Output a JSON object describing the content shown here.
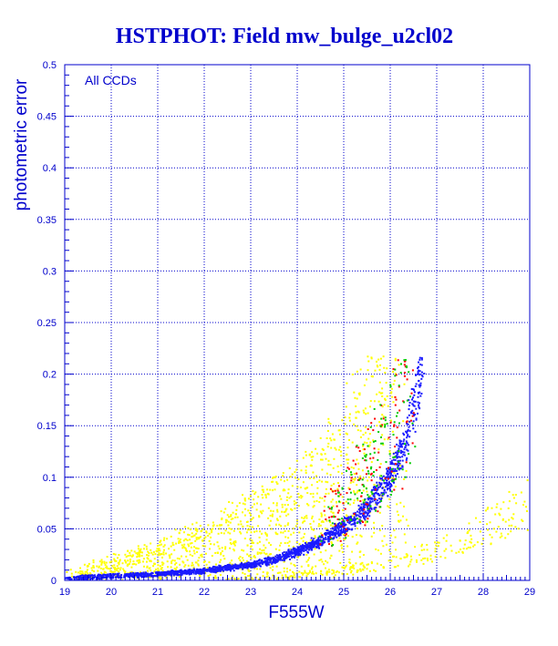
{
  "chart_data": {
    "type": "scatter",
    "title": "HSTPHOT: Field mw_bulge_u2cl02",
    "xlabel": "F555W",
    "ylabel": "photometric error",
    "annotation": "All CCDs",
    "xlim": [
      19,
      29
    ],
    "ylim": [
      0,
      0.5
    ],
    "x_ticks": [
      "19",
      "20",
      "21",
      "22",
      "23",
      "24",
      "25",
      "26",
      "27",
      "28",
      "29"
    ],
    "y_ticks": [
      "0",
      "0.05",
      "0.1",
      "0.15",
      "0.2",
      "0.25",
      "0.3",
      "0.35",
      "0.4",
      "0.45",
      "0.5"
    ],
    "grid": true,
    "colors": {
      "axis": "#0000cc",
      "title": "#0000cc",
      "main_sequence": "#1a1aff",
      "scatter_yellow": "#ffff00",
      "chip_red": "#ff0000",
      "chip_green": "#00cc00",
      "chip_dark": "#000080"
    },
    "series": [
      {
        "color": "#1a1aff",
        "trend": [
          [
            19.0,
            0.002
          ],
          [
            20.0,
            0.004
          ],
          [
            21.0,
            0.006
          ],
          [
            22.0,
            0.009
          ],
          [
            23.0,
            0.015
          ],
          [
            23.5,
            0.02
          ],
          [
            24.0,
            0.028
          ],
          [
            24.5,
            0.038
          ],
          [
            25.0,
            0.052
          ],
          [
            25.5,
            0.07
          ],
          [
            26.0,
            0.1
          ],
          [
            26.3,
            0.13
          ],
          [
            26.5,
            0.165
          ],
          [
            26.7,
            0.215
          ]
        ]
      },
      {
        "color": "#ffff00",
        "trend": [
          [
            19.0,
            0.005
          ],
          [
            20.0,
            0.012
          ],
          [
            21.0,
            0.02
          ],
          [
            22.0,
            0.03
          ],
          [
            23.0,
            0.045
          ],
          [
            24.0,
            0.06
          ],
          [
            25.0,
            0.09
          ],
          [
            25.5,
            0.12
          ],
          [
            26.0,
            0.16
          ],
          [
            26.3,
            0.215
          ]
        ]
      },
      {
        "color": "#ffff00",
        "trend": [
          [
            22.5,
            0.002
          ],
          [
            23.5,
            0.003
          ],
          [
            24.5,
            0.006
          ],
          [
            25.5,
            0.012
          ],
          [
            26.5,
            0.022
          ],
          [
            27.5,
            0.038
          ],
          [
            28.5,
            0.06
          ],
          [
            29.0,
            0.075
          ]
        ]
      },
      {
        "color": "#ff0000",
        "trend": [
          [
            24.5,
            0.05
          ],
          [
            25.0,
            0.07
          ],
          [
            25.5,
            0.1
          ],
          [
            26.0,
            0.14
          ],
          [
            26.5,
            0.2
          ]
        ]
      },
      {
        "color": "#00cc00",
        "trend": [
          [
            24.5,
            0.05
          ],
          [
            25.0,
            0.07
          ],
          [
            25.5,
            0.1
          ],
          [
            26.0,
            0.14
          ],
          [
            26.5,
            0.2
          ]
        ]
      }
    ]
  }
}
